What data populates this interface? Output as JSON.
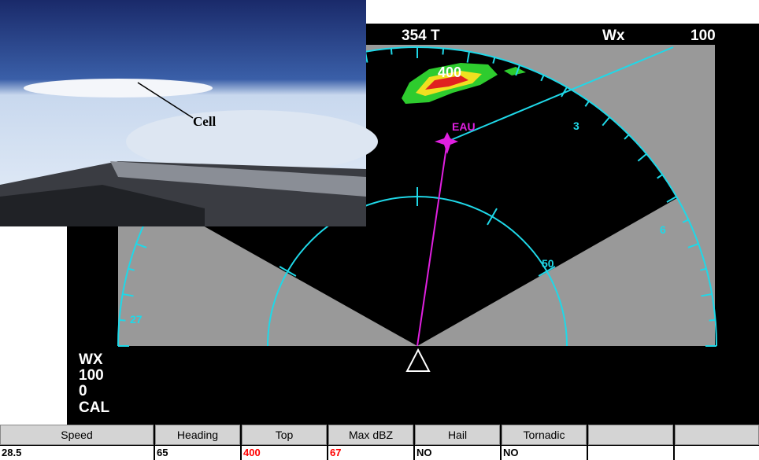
{
  "header": {
    "heading": "354 T",
    "mode": "Wx",
    "range": "100"
  },
  "map_labels": {
    "waypoint": "EAU",
    "cell_top": "400",
    "range_ring": "50",
    "bearings": [
      "3",
      "6",
      "27"
    ]
  },
  "status": [
    "WX",
    "100",
    "0",
    "CAL"
  ],
  "photo": {
    "label": "Cell"
  },
  "table": {
    "headers": [
      "Speed",
      "Heading",
      "Top",
      "Max dBZ",
      "Hail",
      "Tornadic"
    ],
    "values": [
      "28.5",
      "65",
      "400",
      "67",
      "NO",
      "NO"
    ]
  }
}
